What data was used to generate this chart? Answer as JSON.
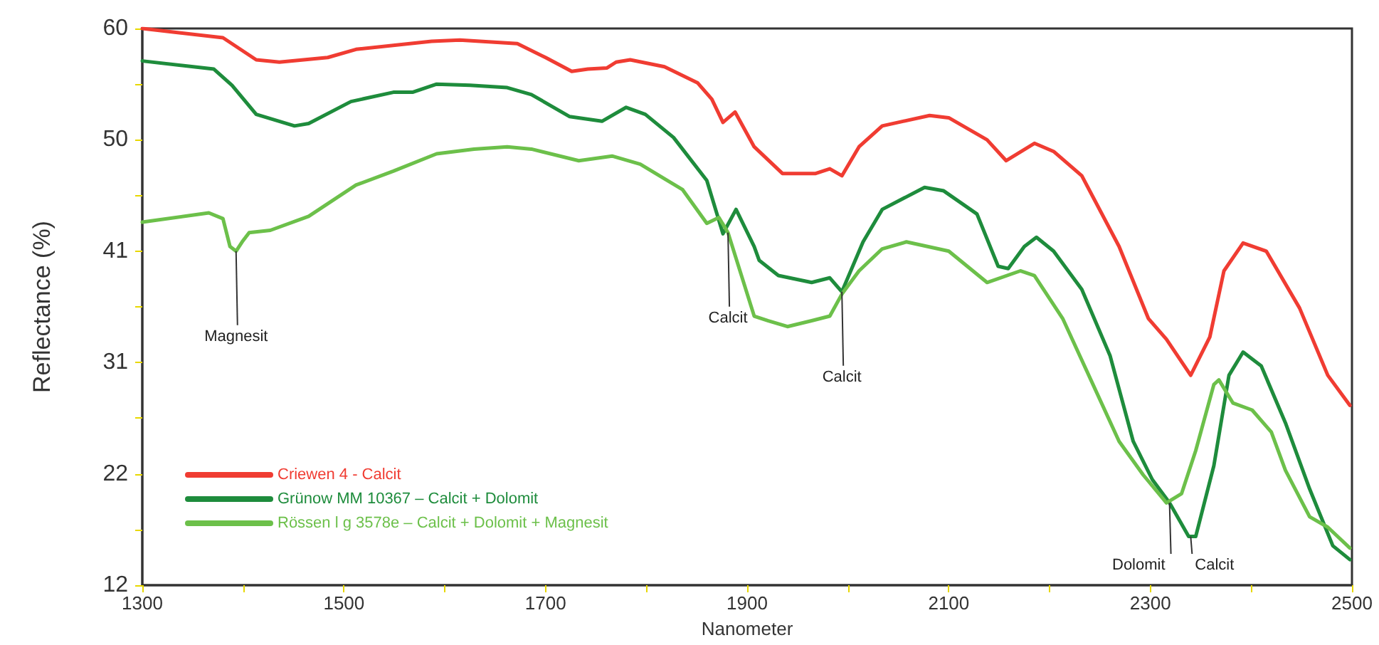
{
  "chart_data": {
    "type": "line",
    "xlabel": "Nanometer",
    "ylabel": "Reflectance (%)",
    "xlim": [
      1300,
      2500
    ],
    "ylim": [
      12,
      60
    ],
    "xticks": [
      1300,
      {
        "value": 1400,
        "label": null
      },
      1500,
      {
        "value": 1600,
        "label": null
      },
      1700,
      {
        "value": 1800,
        "label": null
      },
      1900,
      {
        "value": 2000,
        "label": null
      },
      2100,
      {
        "value": 2200,
        "label": null
      },
      2300,
      {
        "value": 2400,
        "label": null
      },
      2500
    ],
    "yticks": [
      {
        "value": 12,
        "label": "12"
      },
      {
        "value": 16.8,
        "label": null
      },
      {
        "value": 21.6,
        "label": "22"
      },
      {
        "value": 26.4,
        "label": null
      },
      {
        "value": 31.2,
        "label": "31"
      },
      {
        "value": 36,
        "label": null
      },
      {
        "value": 40.8,
        "label": "41"
      },
      {
        "value": 45.6,
        "label": null
      },
      {
        "value": 50.4,
        "label": "50"
      },
      {
        "value": 55.2,
        "label": null
      },
      {
        "value": 60,
        "label": "60"
      }
    ],
    "grid": false,
    "legend": "bottom left",
    "marker": "none",
    "line_style": "solid",
    "series": [
      {
        "name": "Criewen 4 - Calcit",
        "color": "#f03c32",
        "x": [
          1300,
          1380,
          1413,
          1436,
          1484,
          1512,
          1587,
          1615,
          1672,
          1700,
          1726,
          1742,
          1761,
          1770,
          1784,
          1818,
          1851,
          1865,
          1876,
          1888,
          1907,
          1935,
          1968,
          1982,
          1994,
          2011,
          2034,
          2081,
          2100,
          2138,
          2157,
          2185,
          2204,
          2232,
          2269,
          2298,
          2316,
          2340,
          2359,
          2373,
          2392,
          2415,
          2448,
          2476,
          2498
        ],
        "values": [
          60,
          59.2,
          57.3,
          57.1,
          57.5,
          58.2,
          58.9,
          59.0,
          58.7,
          57.5,
          56.3,
          56.5,
          56.6,
          57.1,
          57.3,
          56.7,
          55.3,
          53.9,
          51.9,
          52.8,
          49.8,
          47.5,
          47.5,
          47.9,
          47.3,
          49.8,
          51.6,
          52.5,
          52.3,
          50.4,
          48.6,
          50.1,
          49.4,
          47.3,
          41.2,
          35.0,
          33.2,
          30.1,
          33.4,
          39.1,
          41.5,
          40.8,
          35.9,
          30.1,
          27.5
        ]
      },
      {
        "name": "Grünow MM 10367 – Calcit + Dolomit",
        "color": "#1e8c3c",
        "x": [
          1300,
          1371,
          1389,
          1413,
          1451,
          1465,
          1507,
          1549,
          1568,
          1592,
          1625,
          1662,
          1686,
          1724,
          1756,
          1780,
          1799,
          1827,
          1860,
          1876,
          1889,
          1907,
          1912,
          1931,
          1964,
          1982,
          1994,
          2015,
          2034,
          2076,
          2095,
          2128,
          2149,
          2159,
          2175,
          2187,
          2204,
          2232,
          2260,
          2283,
          2302,
          2319,
          2338,
          2345,
          2363,
          2378,
          2392,
          2410,
          2434,
          2458,
          2481,
          2498
        ],
        "values": [
          57.2,
          56.5,
          55.1,
          52.6,
          51.6,
          51.8,
          53.7,
          54.5,
          54.5,
          55.2,
          55.1,
          54.9,
          54.3,
          52.4,
          52.0,
          53.2,
          52.6,
          50.6,
          46.9,
          42.3,
          44.4,
          41.2,
          40.0,
          38.7,
          38.1,
          38.5,
          37.3,
          41.6,
          44.4,
          46.3,
          46.0,
          44.0,
          39.5,
          39.3,
          41.2,
          42.0,
          40.8,
          37.5,
          31.8,
          24.4,
          21.1,
          19.1,
          16.2,
          16.2,
          22.3,
          30.1,
          32.1,
          30.9,
          26.0,
          20.3,
          15.4,
          14.2
        ]
      },
      {
        "name": "Rössen l g 3578e – Calcit + Dolomit + Magnesit",
        "color": "#6cc04a",
        "x": [
          1300,
          1366,
          1380,
          1387,
          1393,
          1399,
          1406,
          1427,
          1465,
          1512,
          1549,
          1592,
          1629,
          1662,
          1686,
          1733,
          1766,
          1794,
          1836,
          1860,
          1872,
          1881,
          1907,
          1921,
          1940,
          1964,
          1982,
          1994,
          2011,
          2034,
          2058,
          2100,
          2138,
          2171,
          2185,
          2213,
          2241,
          2269,
          2293,
          2316,
          2331,
          2345,
          2363,
          2368,
          2382,
          2401,
          2420,
          2434,
          2458,
          2476,
          2498
        ],
        "values": [
          43.3,
          44.1,
          43.6,
          41.2,
          40.8,
          41.6,
          42.4,
          42.6,
          43.8,
          46.5,
          47.7,
          49.2,
          49.6,
          49.8,
          49.6,
          48.6,
          49.0,
          48.3,
          46.1,
          43.2,
          43.7,
          42.4,
          35.2,
          34.8,
          34.3,
          34.8,
          35.2,
          37.1,
          39.1,
          41.0,
          41.6,
          40.8,
          38.1,
          39.1,
          38.7,
          35.0,
          29.7,
          24.4,
          21.5,
          19.1,
          19.9,
          23.6,
          29.3,
          29.7,
          27.7,
          27.1,
          25.2,
          21.9,
          17.9,
          17.0,
          15.2
        ]
      }
    ],
    "annotations": [
      {
        "text": "Magnesit",
        "x": 1393,
        "y": 40.8
      },
      {
        "text": "Calcit",
        "x": 1881,
        "y": 42.4
      },
      {
        "text": "Calcit",
        "x": 1994,
        "y": 37.3
      },
      {
        "text": "Dolomit",
        "x": 2319,
        "y": 19.1
      },
      {
        "text": "Calcit",
        "x": 2340,
        "y": 16.2
      }
    ]
  }
}
